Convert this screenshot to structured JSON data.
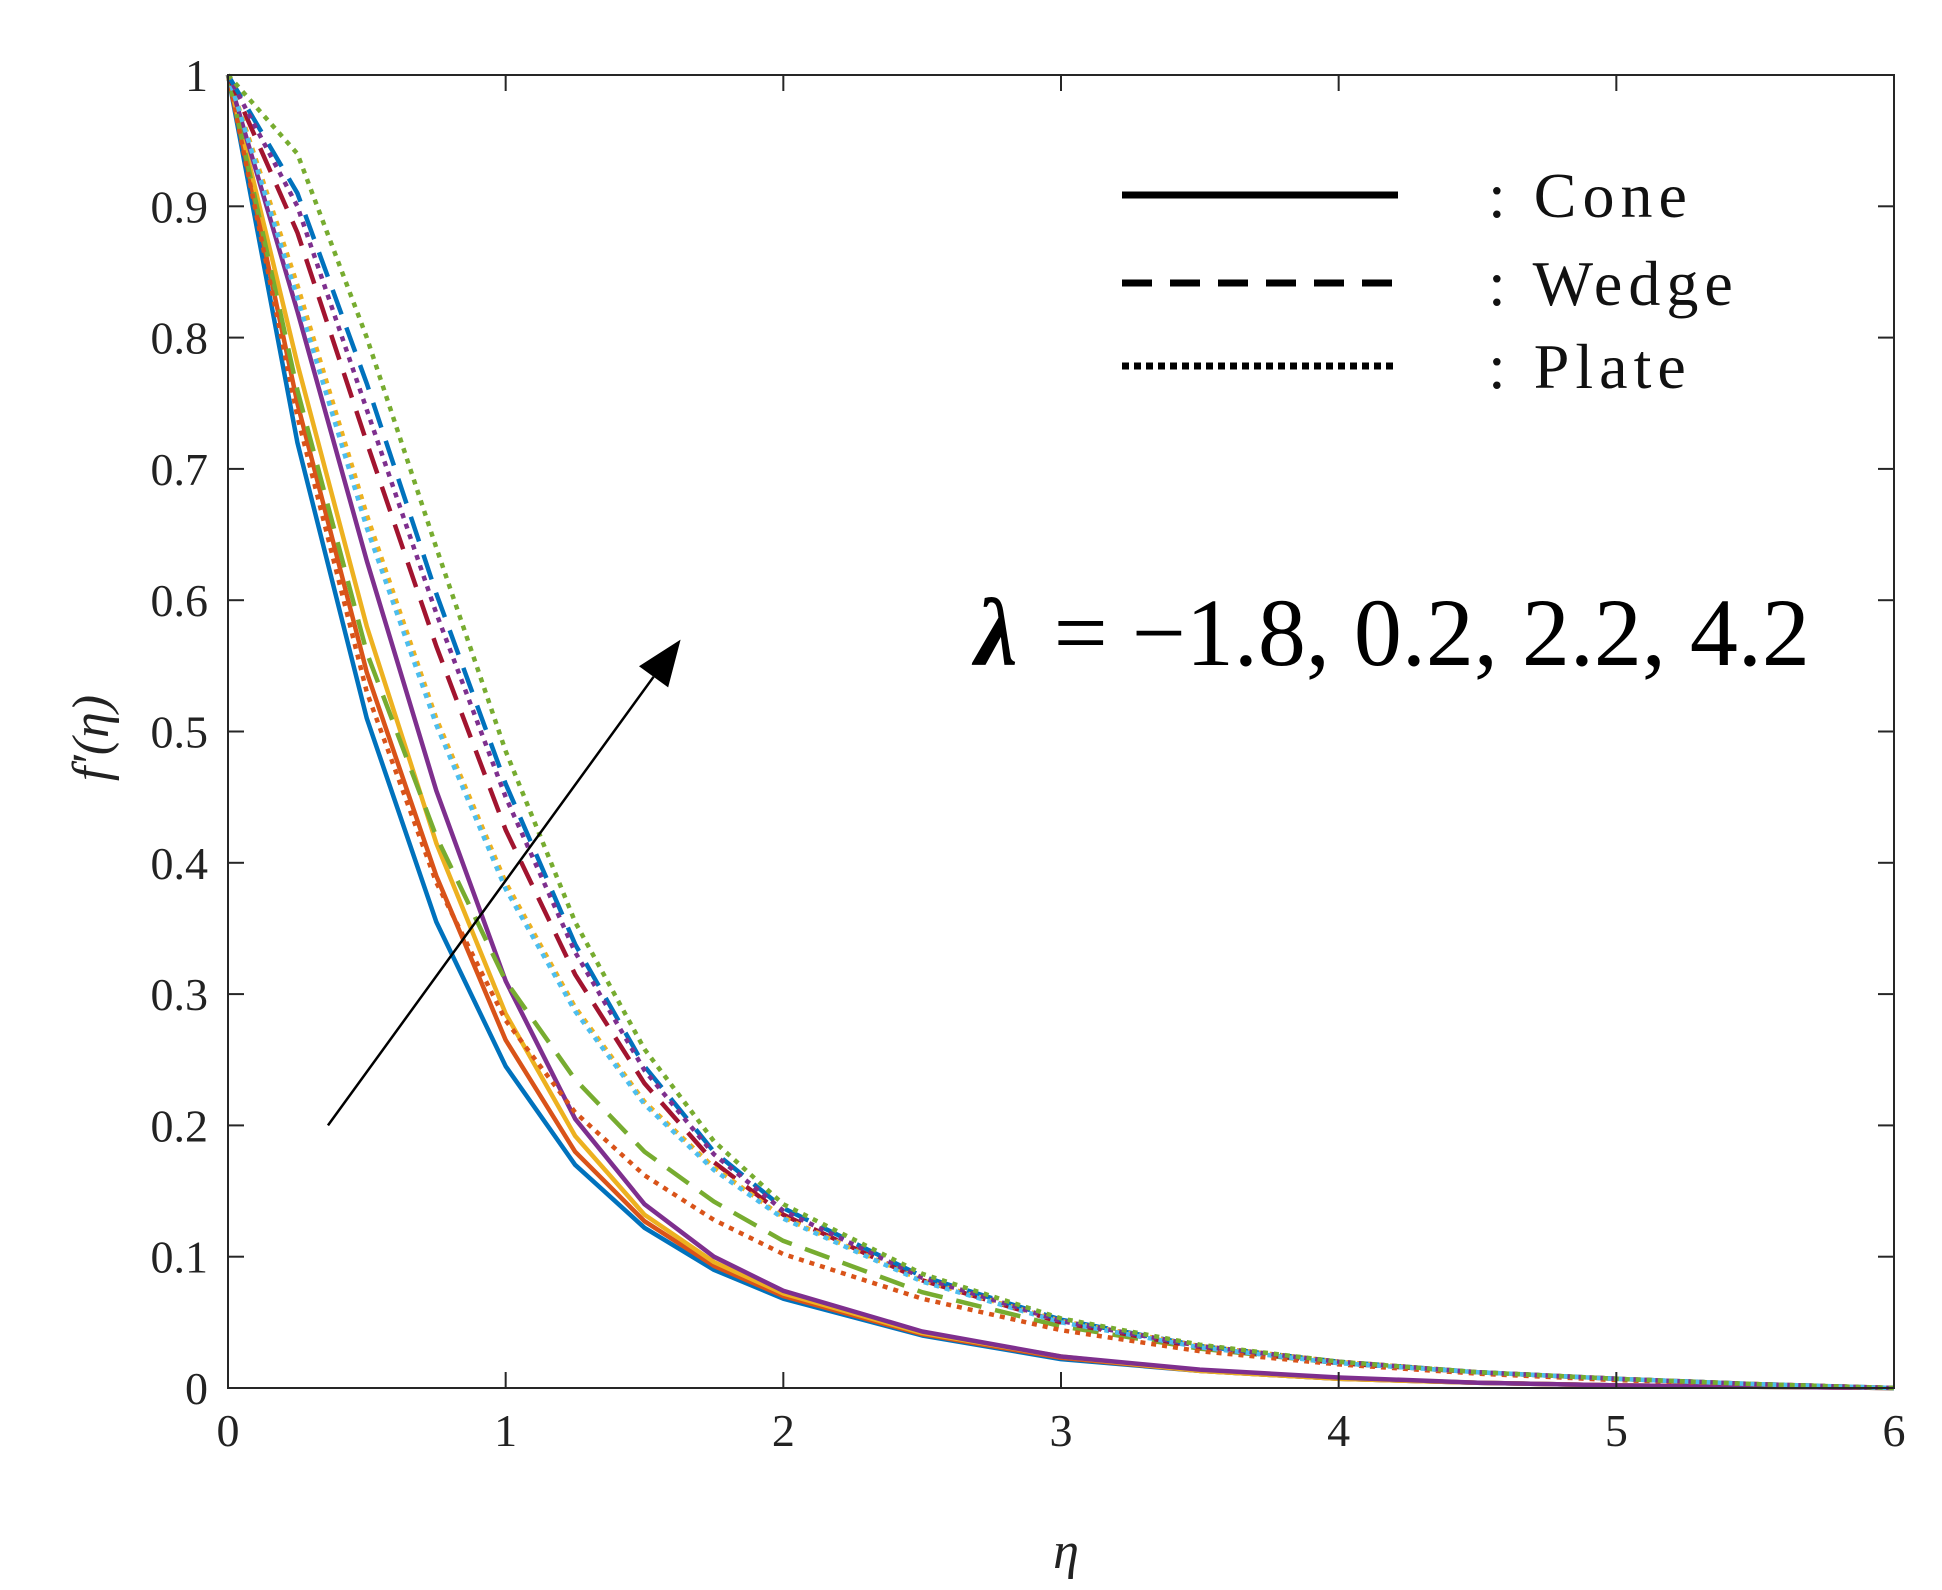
{
  "chart_data": {
    "type": "line",
    "xlabel": "η",
    "ylabel": "f′(η)",
    "xlim": [
      0,
      6
    ],
    "ylim": [
      0,
      1
    ],
    "x_ticks": [
      "0",
      "1",
      "2",
      "3",
      "4",
      "5",
      "6"
    ],
    "y_ticks": [
      "0",
      "0.1",
      "0.2",
      "0.3",
      "0.4",
      "0.5",
      "0.6",
      "0.7",
      "0.8",
      "0.9",
      "1"
    ],
    "grid": false,
    "legend": {
      "position": "top-right",
      "entries": [
        {
          "label": ": Cone",
          "style": "solid"
        },
        {
          "label": ": Wedge",
          "style": "dashed"
        },
        {
          "label": ": Plate",
          "style": "dotted"
        }
      ]
    },
    "annotation": {
      "symbol": "λ",
      "text": "= −1.8, 0.2, 2.2, 4.2",
      "arrow": {
        "from": [
          0.36,
          0.2
        ],
        "to": [
          1.63,
          0.57
        ]
      }
    },
    "x": [
      0,
      0.25,
      0.5,
      0.75,
      1,
      1.25,
      1.5,
      1.75,
      2,
      2.5,
      3,
      3.5,
      4,
      4.5,
      5,
      5.5,
      6
    ],
    "series": [
      {
        "group": "Cone",
        "style": "solid",
        "color": "#0072BD",
        "values": [
          1,
          0.72,
          0.51,
          0.355,
          0.245,
          0.17,
          0.122,
          0.09,
          0.068,
          0.04,
          0.022,
          0.013,
          0.007,
          0.004,
          0.002,
          0.001,
          0
        ]
      },
      {
        "group": "Cone",
        "style": "solid",
        "color": "#D95319",
        "values": [
          1,
          0.75,
          0.545,
          0.39,
          0.265,
          0.18,
          0.127,
          0.093,
          0.07,
          0.041,
          0.023,
          0.013,
          0.007,
          0.004,
          0.002,
          0.001,
          0
        ]
      },
      {
        "group": "Cone",
        "style": "solid",
        "color": "#EDB120",
        "values": [
          1,
          0.78,
          0.58,
          0.415,
          0.285,
          0.192,
          0.132,
          0.096,
          0.072,
          0.042,
          0.024,
          0.013,
          0.007,
          0.004,
          0.002,
          0.001,
          0
        ]
      },
      {
        "group": "Cone",
        "style": "solid",
        "color": "#7E2F8E",
        "values": [
          1,
          0.82,
          0.63,
          0.455,
          0.31,
          0.205,
          0.14,
          0.1,
          0.074,
          0.043,
          0.024,
          0.014,
          0.008,
          0.004,
          0.002,
          0.001,
          0
        ]
      },
      {
        "group": "Wedge",
        "style": "dashed",
        "color": "#77AC30",
        "values": [
          1,
          0.76,
          0.56,
          0.42,
          0.31,
          0.235,
          0.18,
          0.142,
          0.112,
          0.073,
          0.047,
          0.03,
          0.019,
          0.012,
          0.007,
          0.003,
          0
        ]
      },
      {
        "group": "Wedge",
        "style": "dashed",
        "color": "#A2142F",
        "values": [
          1,
          0.88,
          0.72,
          0.565,
          0.425,
          0.315,
          0.232,
          0.172,
          0.132,
          0.082,
          0.05,
          0.031,
          0.019,
          0.012,
          0.007,
          0.003,
          0
        ]
      },
      {
        "group": "Wedge",
        "style": "dashed",
        "color": "#0072BD",
        "values": [
          1,
          0.91,
          0.765,
          0.605,
          0.46,
          0.338,
          0.245,
          0.18,
          0.137,
          0.085,
          0.052,
          0.032,
          0.02,
          0.012,
          0.007,
          0.003,
          0
        ]
      },
      {
        "group": "Plate",
        "style": "dotted",
        "color": "#D95319",
        "values": [
          1,
          0.74,
          0.53,
          0.385,
          0.28,
          0.21,
          0.162,
          0.128,
          0.102,
          0.068,
          0.044,
          0.028,
          0.018,
          0.011,
          0.006,
          0.003,
          0
        ]
      },
      {
        "group": "Plate",
        "style": "dotted",
        "color": "#EDB120",
        "values": [
          1,
          0.84,
          0.665,
          0.51,
          0.385,
          0.29,
          0.218,
          0.168,
          0.13,
          0.082,
          0.051,
          0.032,
          0.02,
          0.012,
          0.007,
          0.003,
          0
        ]
      },
      {
        "group": "Plate",
        "style": "dotted",
        "color": "#4DBEEE",
        "values": [
          1,
          0.83,
          0.655,
          0.505,
          0.38,
          0.287,
          0.216,
          0.166,
          0.129,
          0.081,
          0.05,
          0.031,
          0.019,
          0.012,
          0.007,
          0.003,
          0
        ]
      },
      {
        "group": "Plate",
        "style": "dotted",
        "color": "#7E2F8E",
        "values": [
          1,
          0.9,
          0.745,
          0.59,
          0.45,
          0.332,
          0.242,
          0.178,
          0.135,
          0.084,
          0.051,
          0.032,
          0.02,
          0.012,
          0.007,
          0.003,
          0
        ]
      },
      {
        "group": "Plate",
        "style": "dotted",
        "color": "#77AC30",
        "values": [
          1,
          0.94,
          0.8,
          0.64,
          0.485,
          0.355,
          0.258,
          0.188,
          0.14,
          0.087,
          0.053,
          0.033,
          0.02,
          0.012,
          0.007,
          0.003,
          0
        ]
      }
    ]
  }
}
